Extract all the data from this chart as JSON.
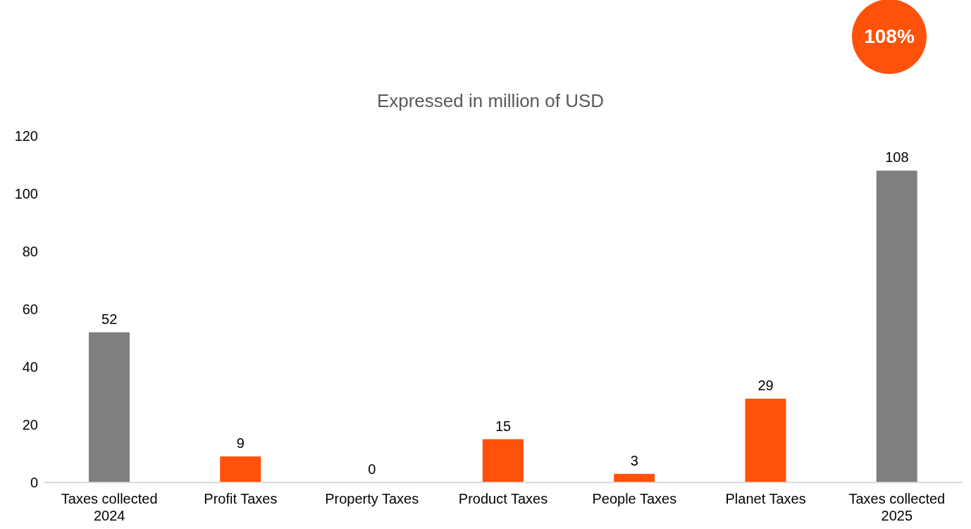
{
  "chart_data": {
    "type": "bar",
    "title": "Expressed in million of USD",
    "categories": [
      "Taxes collected 2024",
      "Profit Taxes",
      "Property Taxes",
      "Product Taxes",
      "People Taxes",
      "Planet Taxes",
      "Taxes collected 2025"
    ],
    "values": [
      52,
      9,
      0,
      15,
      3,
      29,
      108
    ],
    "colors": [
      "#7f7f7f",
      "#fe520a",
      "#fe520a",
      "#fe520a",
      "#fe520a",
      "#fe520a",
      "#7f7f7f"
    ],
    "ylim": [
      0,
      120
    ],
    "yticks": [
      0,
      20,
      40,
      60,
      80,
      100,
      120
    ],
    "data_labels": true,
    "annotations": [
      "108%"
    ]
  }
}
